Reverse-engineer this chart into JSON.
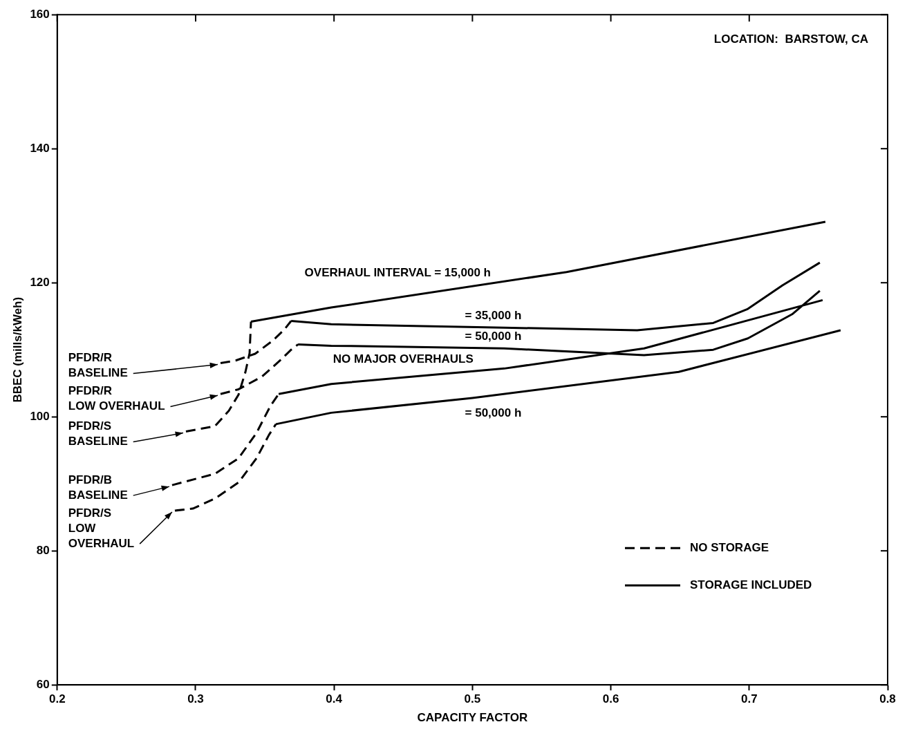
{
  "chart_data": {
    "type": "line",
    "xlabel": "CAPACITY FACTOR",
    "ylabel": "BBEC (mills/kWeh)",
    "xlim": [
      0.2,
      0.8
    ],
    "xticks": [
      0.2,
      0.3,
      0.4,
      0.5,
      0.6,
      0.7,
      0.8
    ],
    "ylim": [
      60,
      160
    ],
    "yticks": [
      60,
      80,
      100,
      120,
      140,
      160
    ],
    "grid": false,
    "legend": "bottom right",
    "marker": "none",
    "series": [
      {
        "name": "NO STORAGE",
        "color": "#000000",
        "line_style": "dashed",
        "x": [
          0.318,
          0.329,
          0.343,
          0.356,
          0.364,
          0.369,
          null,
          0.318,
          0.331,
          0.348,
          0.361,
          0.369,
          0.374,
          null,
          0.293,
          0.314,
          0.324,
          0.331,
          0.336,
          0.339,
          0.34,
          null,
          0.283,
          0.314,
          0.331,
          0.344,
          0.354,
          0.36,
          null,
          0.285,
          0.298,
          0.314,
          0.331,
          0.344,
          0.353,
          0.358
        ],
        "values": [
          108.0,
          108.4,
          109.4,
          111.4,
          113.0,
          114.3,
          null,
          103.4,
          104.1,
          106.0,
          108.4,
          110.0,
          110.8,
          null,
          97.8,
          98.6,
          100.9,
          103.3,
          106.7,
          109.5,
          114.2,
          null,
          89.8,
          91.5,
          93.8,
          97.6,
          101.6,
          103.4,
          null,
          86.0,
          86.3,
          87.8,
          90.2,
          93.8,
          97.3,
          98.9
        ]
      },
      {
        "name": "STORAGE INCLUDED",
        "color": "#000000",
        "line_style": "solid",
        "x": [
          0.34,
          0.398,
          0.568,
          0.755,
          null,
          0.369,
          0.398,
          0.523,
          0.619,
          0.674,
          0.699,
          0.724,
          0.751,
          null,
          0.374,
          0.398,
          0.523,
          0.624,
          0.674,
          0.699,
          0.731,
          0.751,
          null,
          0.36,
          0.398,
          0.523,
          0.624,
          0.753,
          null,
          0.358,
          0.398,
          0.5,
          0.649,
          0.766
        ],
        "values": [
          114.2,
          116.3,
          121.6,
          129.1,
          null,
          114.3,
          113.8,
          113.3,
          112.9,
          114.0,
          116.1,
          119.6,
          123.0,
          null,
          110.8,
          110.6,
          110.2,
          109.2,
          110.0,
          111.7,
          115.3,
          118.8,
          null,
          103.4,
          104.9,
          107.2,
          110.2,
          117.4,
          null,
          98.9,
          100.6,
          102.8,
          106.7,
          112.9
        ]
      }
    ],
    "annotations": [
      "LOCATION:  BARSTOW, CA",
      {
        "text": "OVERHAUL INTERVAL = 15,000 h",
        "x": 0.446,
        "y": 117.6
      },
      {
        "text": "= 35,000 h",
        "x": 0.515,
        "y": 113.3
      },
      {
        "text": "= 50,000 h",
        "x": 0.515,
        "y": 110.2
      },
      {
        "text": "NO MAJOR OVERHAULS",
        "x": 0.45,
        "y": 105.9
      },
      {
        "text": "= 50,000 h",
        "x": 0.515,
        "y": 103.2
      },
      {
        "text": "PFDR/R\nBASELINE",
        "x": 0.318,
        "y": 108.0
      },
      {
        "text": "PFDR/R\nLOW OVERHAUL",
        "x": 0.318,
        "y": 103.4
      },
      {
        "text": "PFDR/S\nBASELINE",
        "x": 0.293,
        "y": 97.8
      },
      {
        "text": "PFDR/B\nBASELINE",
        "x": 0.283,
        "y": 89.8
      },
      {
        "text": "PFDR/S\nLOW\nOVERHAUL",
        "x": 0.285,
        "y": 86.0
      }
    ]
  }
}
